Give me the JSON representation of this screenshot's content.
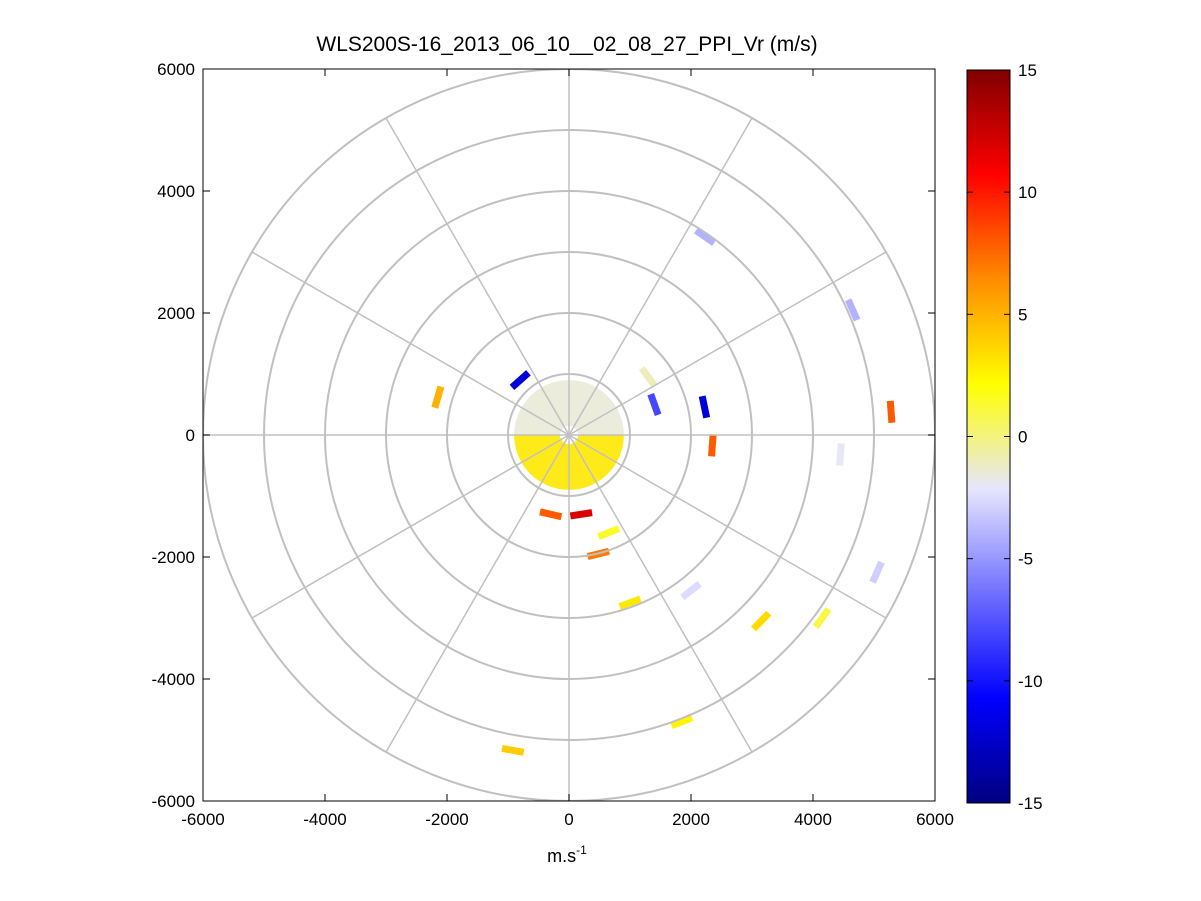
{
  "chart_data": {
    "type": "heatmap",
    "subtype": "polar-ppi",
    "title": "WLS200S-16_2013_06_10__02_08_27_PPI_Vr (m/s)",
    "xlabel": "m.s",
    "xlabel_sup": "-1",
    "ylabel": "",
    "xlim": [
      -6000,
      6000
    ],
    "ylim": [
      -6000,
      6000
    ],
    "x_ticks": [
      -6000,
      -4000,
      -2000,
      0,
      2000,
      4000,
      6000
    ],
    "y_ticks": [
      6000,
      4000,
      2000,
      0,
      -2000,
      -4000,
      -6000
    ],
    "x_tick_labels": [
      "-6000",
      "-4000",
      "-2000",
      "0",
      "2000",
      "4000",
      "6000"
    ],
    "y_tick_labels": [
      "6000",
      "4000",
      "2000",
      "0",
      "-2000",
      "-4000",
      "-6000"
    ],
    "grid": {
      "range_rings": [
        1000,
        2000,
        3000,
        4000,
        5000,
        6000
      ],
      "spoke_angles_deg": [
        0,
        30,
        60,
        90,
        120,
        150,
        180,
        210,
        240,
        270,
        300,
        330
      ]
    },
    "colorbar": {
      "clim": [
        -15,
        15
      ],
      "tick_values": [
        15,
        10,
        5,
        0,
        -5,
        -10,
        -15
      ],
      "tick_labels": [
        "15",
        "10",
        "5",
        "0",
        "-5",
        "-10",
        "-15"
      ],
      "colors_low_to_high": [
        "#000080",
        "#0000ff",
        "#6f6fff",
        "#e6e6ff",
        "#ffff00",
        "#ff8c00",
        "#ff0000",
        "#800000"
      ]
    },
    "core_region": {
      "range_min": 150,
      "range_max": 900,
      "north_half_vr": -1.5,
      "south_half_vr": 3.0
    },
    "gates": [
      {
        "x": 2230,
        "y": 3250,
        "vr": -4.0
      },
      {
        "x": 4650,
        "y": 2050,
        "vr": -4.0
      },
      {
        "x": 5280,
        "y": 380,
        "vr": 8.0
      },
      {
        "x": -2150,
        "y": 620,
        "vr": 5.0
      },
      {
        "x": 2220,
        "y": 460,
        "vr": -12.0
      },
      {
        "x": 2350,
        "y": -170,
        "vr": 8.0
      },
      {
        "x": 4450,
        "y": -320,
        "vr": -2.0
      },
      {
        "x": 5050,
        "y": -2250,
        "vr": -3.0
      },
      {
        "x": 2000,
        "y": -2550,
        "vr": -2.5
      },
      {
        "x": 1000,
        "y": -2750,
        "vr": 3.0
      },
      {
        "x": 3150,
        "y": -3050,
        "vr": 3.5
      },
      {
        "x": 4150,
        "y": -3000,
        "vr": 1.0
      },
      {
        "x": 1850,
        "y": -4700,
        "vr": 2.5
      },
      {
        "x": -920,
        "y": -5170,
        "vr": 4.0
      },
      {
        "x": 480,
        "y": -1950,
        "vr": 7.0
      },
      {
        "x": 200,
        "y": -1300,
        "vr": 12.0
      },
      {
        "x": -300,
        "y": -1300,
        "vr": 8.0
      },
      {
        "x": -800,
        "y": 900,
        "vr": -12.0
      },
      {
        "x": 1400,
        "y": 500,
        "vr": -8.0
      },
      {
        "x": 650,
        "y": -1600,
        "vr": 1.5
      },
      {
        "x": 1300,
        "y": 950,
        "vr": -1.0
      }
    ]
  }
}
